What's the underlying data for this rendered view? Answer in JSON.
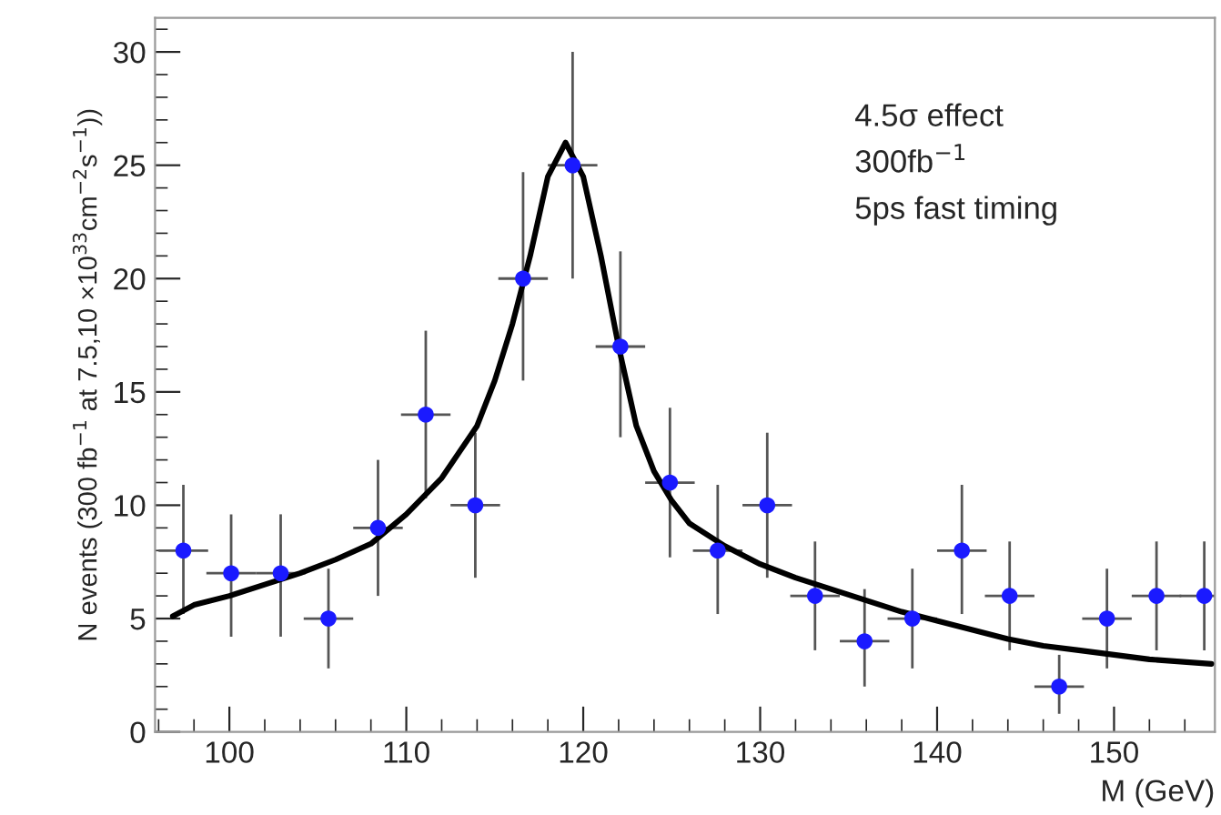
{
  "chart_data": {
    "type": "scatter",
    "xlabel": "M (GeV)",
    "ylabel": "N events (300 fb$^{−1}$ at 7.5,10 ×10$^{33}$cm$^{−2}$s$^{−1}$))",
    "annotations": [
      "4.5σ effect",
      "300fb$^{−1}$",
      "5ps fast timing"
    ],
    "xlim": [
      95.8,
      155.7
    ],
    "ylim": [
      0,
      31.5
    ],
    "xticks": [
      100,
      110,
      120,
      130,
      140,
      150
    ],
    "yticks": [
      0,
      5,
      10,
      15,
      20,
      25,
      30
    ],
    "grid": false,
    "legend": false,
    "marker": "circle",
    "series": [
      {
        "color": "#1a1aff",
        "x": [
          97.4,
          100.1,
          102.9,
          105.6,
          108.4,
          111.1,
          113.9,
          116.6,
          119.4,
          122.1,
          124.9,
          127.6,
          130.4,
          133.1,
          135.9,
          138.6,
          141.4,
          144.1,
          146.9,
          149.6,
          152.4,
          155.1
        ],
        "values": [
          8,
          7,
          7,
          5,
          9,
          14,
          10,
          20,
          25,
          17,
          11,
          8,
          10,
          6,
          4,
          5,
          8,
          6,
          2,
          5,
          6,
          6
        ],
        "errors": [
          [
            5.2,
            10.9
          ],
          [
            4.2,
            9.6
          ],
          [
            4.2,
            9.6
          ],
          [
            2.8,
            7.2
          ],
          [
            6,
            12
          ],
          [
            10.3,
            17.7
          ],
          [
            6.8,
            13.2
          ],
          [
            15.5,
            24.7
          ],
          [
            20,
            30
          ],
          [
            13,
            21.2
          ],
          [
            7.7,
            14.3
          ],
          [
            5.2,
            10.9
          ],
          [
            6.8,
            13.2
          ],
          [
            3.6,
            8.4
          ],
          [
            2,
            6.3
          ],
          [
            2.8,
            7.2
          ],
          [
            5.2,
            10.9
          ],
          [
            3.6,
            8.4
          ],
          [
            0.8,
            3.4
          ],
          [
            2.8,
            7.2
          ],
          [
            3.6,
            8.4
          ],
          [
            3.6,
            8.4
          ]
        ],
        "xerrors": [
          1.4,
          1.4,
          1.4,
          1.4,
          1.4,
          1.4,
          1.4,
          1.4,
          1.4,
          1.4,
          1.4,
          1.4,
          1.4,
          1.4,
          1.4,
          1.4,
          1.4,
          1.4,
          1.4,
          1.4,
          1.4,
          [
            153.7,
            155.7
          ]
        ]
      },
      {
        "type": "line",
        "color": "#000000",
        "line_style": "solid",
        "marker": "none",
        "x": [
          96.8,
          98,
          100,
          102,
          104,
          106,
          108,
          110,
          112,
          114,
          115,
          116,
          117,
          118,
          119,
          120,
          121,
          122,
          123,
          124,
          125,
          126,
          128,
          130,
          132,
          134,
          136,
          138,
          140,
          142,
          144,
          146,
          148,
          150,
          152,
          155.5
        ],
        "values": [
          5.1,
          5.6,
          6.0,
          6.5,
          7.0,
          7.6,
          8.3,
          9.6,
          11.2,
          13.5,
          15.5,
          18,
          21,
          24.5,
          26,
          24.5,
          21,
          17,
          13.5,
          11.5,
          10.2,
          9.2,
          8.2,
          7.4,
          6.8,
          6.3,
          5.8,
          5.3,
          4.9,
          4.5,
          4.1,
          3.8,
          3.6,
          3.4,
          3.2,
          3.0
        ]
      }
    ]
  }
}
